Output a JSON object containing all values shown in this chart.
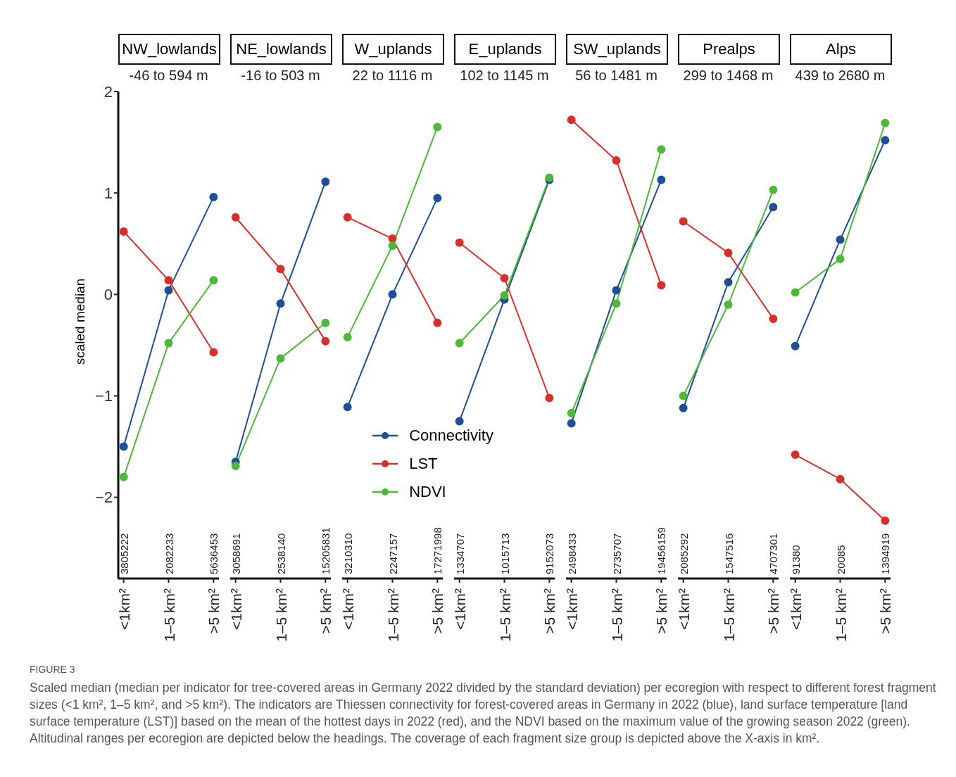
{
  "chart_data": [
    {
      "type": "line",
      "title": "NW_lowlands",
      "subtitle": "-46 to 594 m",
      "ylabel": "scaled median",
      "categories": [
        "<1km²",
        "1–5 km²",
        ">5 km²"
      ],
      "ylim": [
        -2.8,
        2
      ],
      "yticks": [
        -2,
        -1,
        0,
        1,
        2
      ],
      "marker": "circle",
      "legend": false,
      "series": [
        {
          "color": "#1f4e96",
          "values": [
            -1.5,
            0.04,
            0.96
          ]
        },
        {
          "color": "#d7302a",
          "values": [
            0.62,
            0.14,
            -0.57
          ]
        },
        {
          "color": "#4db83a",
          "values": [
            -1.8,
            -0.48,
            0.14
          ]
        }
      ],
      "annotations": [
        "3805222",
        "2082233",
        "5636453",
        "FIGURE 3",
        "Scaled median (median per indicator for tree-covered areas in Germany 2022 divided by the standard deviation) per ecoregion with respect to different forest fragment sizes (<1 km², 1–5 km², and >5 km²). The indicators are Thiessen connectivity for forest-covered areas in Germany in 2022 (blue), land surface temperature [land surface temperature (LST)] based on the mean of the hottest days in 2022 (red), and the NDVI based on the maximum value of the growing season 2022 (green). Altitudinal ranges per ecoregion are depicted below the headings. The coverage of each fragment size group is depicted above the X-axis in km²."
      ]
    },
    {
      "type": "line",
      "title": "NE_lowlands",
      "subtitle": "-16 to 503 m",
      "categories": [
        "<1km²",
        "1–5 km²",
        ">5 km²"
      ],
      "ylim": [
        -2.8,
        2
      ],
      "tick_labels": "x",
      "marker": "circle",
      "legend": false,
      "series": [
        {
          "color": "#1f4e96",
          "values": [
            -1.65,
            -0.09,
            1.11
          ]
        },
        {
          "color": "#d7302a",
          "values": [
            0.76,
            0.25,
            -0.46
          ]
        },
        {
          "color": "#4db83a",
          "values": [
            -1.69,
            -0.63,
            -0.28
          ]
        }
      ],
      "annotations": [
        "3058691",
        "2538140",
        "15205831"
      ]
    },
    {
      "type": "line",
      "title": "W_uplands",
      "subtitle": "22 to 1116 m",
      "categories": [
        "<1km²",
        "1–5 km²",
        ">5 km²"
      ],
      "ylim": [
        -2.8,
        2
      ],
      "tick_labels": "x",
      "marker": "circle",
      "legend": "bottom right",
      "series": [
        {
          "name": "Connectivity",
          "color": "#1f4e96",
          "values": [
            -1.11,
            0.0,
            0.95
          ]
        },
        {
          "name": "LST",
          "color": "#d7302a",
          "values": [
            0.76,
            0.55,
            -0.28
          ]
        },
        {
          "name": "NDVI",
          "color": "#4db83a",
          "values": [
            -0.42,
            0.48,
            1.65
          ]
        }
      ],
      "annotations": [
        "3210310",
        "2247157",
        "17271998"
      ]
    },
    {
      "type": "line",
      "title": "E_uplands",
      "subtitle": "102 to 1145 m",
      "categories": [
        "<1km²",
        "1–5 km²",
        ">5 km²"
      ],
      "ylim": [
        -2.8,
        2
      ],
      "tick_labels": "x",
      "marker": "circle",
      "legend": false,
      "series": [
        {
          "color": "#1f4e96",
          "values": [
            -1.25,
            -0.05,
            1.13
          ]
        },
        {
          "color": "#d7302a",
          "values": [
            0.51,
            0.16,
            -1.02
          ]
        },
        {
          "color": "#4db83a",
          "values": [
            -0.48,
            -0.01,
            1.15
          ]
        }
      ],
      "annotations": [
        "1334707",
        "1015713",
        "9152073"
      ]
    },
    {
      "type": "line",
      "title": "SW_uplands",
      "subtitle": "56 to 1481 m",
      "categories": [
        "<1km²",
        "1–5 km²",
        ">5 km²"
      ],
      "ylim": [
        -2.8,
        2
      ],
      "tick_labels": "x",
      "marker": "circle",
      "legend": false,
      "series": [
        {
          "color": "#1f4e96",
          "values": [
            -1.27,
            0.04,
            1.13
          ]
        },
        {
          "color": "#d7302a",
          "values": [
            1.72,
            1.32,
            0.09
          ]
        },
        {
          "color": "#4db83a",
          "values": [
            -1.17,
            -0.09,
            1.43
          ]
        }
      ],
      "annotations": [
        "2498433",
        "2735707",
        "19456159"
      ]
    },
    {
      "type": "line",
      "title": "Prealps",
      "subtitle": "299 to 1468 m",
      "categories": [
        "<1km²",
        "1–5 km²",
        ">5 km²"
      ],
      "ylim": [
        -2.8,
        2
      ],
      "tick_labels": "x",
      "marker": "circle",
      "legend": false,
      "series": [
        {
          "color": "#1f4e96",
          "values": [
            -1.12,
            0.12,
            0.86
          ]
        },
        {
          "color": "#d7302a",
          "values": [
            0.72,
            0.41,
            -0.24
          ]
        },
        {
          "color": "#4db83a",
          "values": [
            -1.0,
            -0.1,
            1.03
          ]
        }
      ],
      "annotations": [
        "2085292",
        "1547516",
        "4707301"
      ]
    },
    {
      "type": "line",
      "title": "Alps",
      "subtitle": "439 to 2680 m",
      "categories": [
        "<1km²",
        "1–5 km²",
        ">5 km²"
      ],
      "ylim": [
        -2.8,
        2
      ],
      "tick_labels": "x",
      "marker": "circle",
      "legend": false,
      "series": [
        {
          "color": "#1f4e96",
          "values": [
            -0.51,
            0.54,
            1.52
          ]
        },
        {
          "color": "#d7302a",
          "values": [
            -1.58,
            -1.82,
            -2.23
          ]
        },
        {
          "color": "#4db83a",
          "values": [
            0.02,
            0.35,
            1.69
          ]
        }
      ],
      "annotations": [
        "91380",
        "20085",
        "1394919"
      ]
    }
  ]
}
